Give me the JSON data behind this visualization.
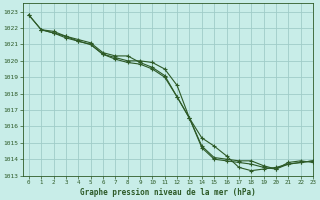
{
  "title": "Graphe pression niveau de la mer (hPa)",
  "background_color": "#c8ede8",
  "grid_color": "#a0ccc8",
  "line_color": "#2d5a27",
  "ylim": [
    1013,
    1023.5
  ],
  "xlim": [
    -0.5,
    23
  ],
  "yticks": [
    1013,
    1014,
    1015,
    1016,
    1017,
    1018,
    1019,
    1020,
    1021,
    1022,
    1023
  ],
  "xticks": [
    0,
    1,
    2,
    3,
    4,
    5,
    6,
    7,
    8,
    9,
    10,
    11,
    12,
    13,
    14,
    15,
    16,
    17,
    18,
    19,
    20,
    21,
    22,
    23
  ],
  "series": [
    {
      "x": [
        0,
        1,
        2,
        3,
        4,
        5,
        6,
        7,
        8,
        9,
        10,
        11,
        12,
        13,
        14,
        15,
        16,
        17,
        18,
        19,
        20,
        21,
        22,
        23
      ],
      "y": [
        1022.8,
        1021.9,
        1021.7,
        1021.5,
        1021.2,
        1021.0,
        1020.4,
        1020.2,
        1020.0,
        1020.0,
        1019.9,
        1019.5,
        1018.5,
        1016.5,
        1015.3,
        1014.8,
        1014.2,
        1013.5,
        1013.3,
        1013.4,
        1013.5,
        1013.7,
        1013.8,
        1013.9
      ]
    },
    {
      "x": [
        0,
        1,
        2,
        3,
        4,
        5,
        6,
        7,
        8,
        9,
        10,
        11,
        12,
        13,
        14,
        15,
        16,
        17,
        18,
        19,
        20,
        21,
        22,
        23
      ],
      "y": [
        1022.8,
        1021.9,
        1021.8,
        1021.5,
        1021.3,
        1021.1,
        1020.5,
        1020.3,
        1020.3,
        1019.9,
        1019.6,
        1019.1,
        1017.8,
        1016.5,
        1014.8,
        1014.1,
        1014.0,
        1013.9,
        1013.9,
        1013.6,
        1013.4,
        1013.8,
        1013.9,
        1013.8
      ]
    },
    {
      "x": [
        1,
        2,
        3,
        4,
        5,
        6,
        7,
        8,
        9,
        10,
        11,
        12,
        13,
        14,
        15,
        16,
        17,
        18,
        19,
        20,
        21,
        22,
        23
      ],
      "y": [
        1021.9,
        1021.7,
        1021.4,
        1021.2,
        1021.0,
        1020.4,
        1020.1,
        1019.9,
        1019.8,
        1019.5,
        1019.0,
        1017.8,
        1016.5,
        1014.7,
        1014.0,
        1013.9,
        1013.8,
        1013.7,
        1013.5,
        1013.4,
        1013.7,
        1013.8,
        1013.9
      ]
    }
  ]
}
